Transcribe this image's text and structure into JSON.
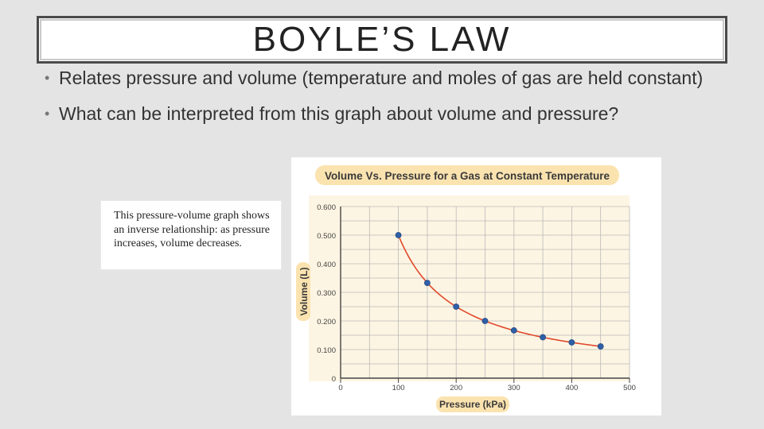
{
  "slide": {
    "title": "BOYLE’S LAW",
    "bullets": [
      "Relates pressure and volume (temperature and moles of gas are held constant)",
      "What can be interpreted from this graph about volume and pressure?"
    ],
    "note": "This pressure-volume graph shows an inverse relationship: as pressure increases, volume decreases."
  },
  "colors": {
    "background": "#e4e4e4",
    "label_bg": "#fbe3b0",
    "plot_bg": "#fdf5e3",
    "curve": "#e04a2c",
    "point": "#2e5fa8"
  },
  "chart_data": {
    "type": "scatter",
    "title": "Volume Vs. Pressure for a Gas at Constant Temperature",
    "xlabel": "Pressure (kPa)",
    "ylabel": "Volume (L)",
    "xlim": [
      0,
      500
    ],
    "ylim": [
      0,
      0.6
    ],
    "x_ticks": [
      "0",
      "100",
      "200",
      "300",
      "400",
      "500"
    ],
    "y_ticks": [
      "0",
      "0.100",
      "0.200",
      "0.300",
      "0.400",
      "0.500",
      "0.600"
    ],
    "grid": true,
    "series": [
      {
        "x": [
          100,
          150,
          200,
          250,
          300,
          350,
          400,
          450
        ],
        "y": [
          0.5,
          0.333,
          0.25,
          0.2,
          0.167,
          0.143,
          0.125,
          0.111
        ]
      }
    ],
    "fit_curve": "inverse"
  }
}
